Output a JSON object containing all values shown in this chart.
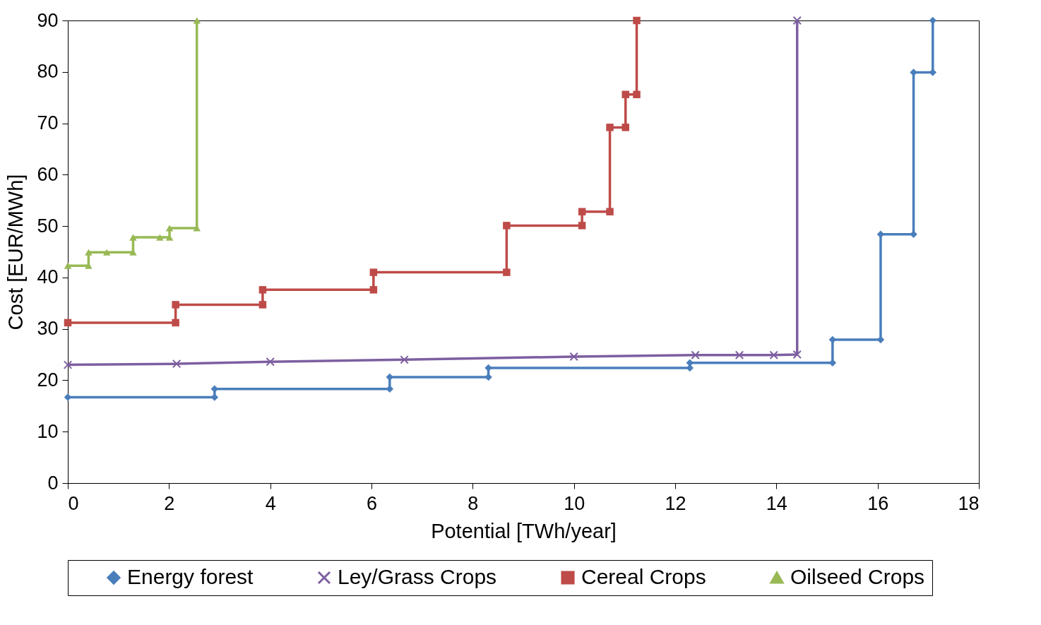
{
  "chart_data": {
    "type": "line",
    "xlabel": "Potential [TWh/year]",
    "ylabel": "Cost [EUR/MWh]",
    "xlim": [
      0,
      18
    ],
    "xticks": [
      0,
      2,
      4,
      6,
      8,
      10,
      12,
      14,
      16,
      18
    ],
    "ylim": [
      0,
      90
    ],
    "yticks": [
      0,
      10,
      20,
      30,
      40,
      50,
      60,
      70,
      80,
      90
    ],
    "grid": false,
    "legend": "bottom",
    "series": [
      {
        "name": "Energy forest",
        "color": "#4a7ebb",
        "marker": "diamond",
        "x": [
          0,
          2.9,
          2.9,
          6.36,
          6.36,
          8.31,
          8.31,
          12.29,
          12.29,
          15.11,
          15.11,
          16.06,
          16.06,
          16.71,
          16.71,
          17.09,
          17.09
        ],
        "values": [
          16.7,
          16.7,
          18.3,
          18.3,
          20.6,
          20.6,
          22.4,
          22.4,
          23.4,
          23.4,
          27.9,
          27.9,
          48.4,
          48.4,
          79.9,
          79.9,
          90
        ]
      },
      {
        "name": "Ley/Grass Crops",
        "color": "#7d5fa0",
        "marker": "cross",
        "x": [
          0,
          2.15,
          4.0,
          6.65,
          10.0,
          12.4,
          13.27,
          13.95,
          14.41,
          14.41
        ],
        "values": [
          23.0,
          23.2,
          23.6,
          24.0,
          24.6,
          24.9,
          24.9,
          24.9,
          25.0,
          90
        ]
      },
      {
        "name": "Cereal Crops",
        "color": "#be4b48",
        "marker": "square",
        "x": [
          0,
          2.13,
          2.13,
          3.85,
          3.85,
          6.04,
          6.04,
          8.67,
          8.67,
          10.16,
          10.16,
          10.71,
          10.71,
          11.02,
          11.02,
          11.24,
          11.24
        ],
        "values": [
          31.2,
          31.2,
          34.7,
          34.7,
          37.6,
          37.6,
          41.0,
          41.0,
          50.1,
          50.1,
          52.8,
          52.8,
          69.2,
          69.2,
          75.6,
          75.6,
          90
        ]
      },
      {
        "name": "Oilseed Crops",
        "color": "#98b954",
        "marker": "triangle",
        "x": [
          0,
          0.41,
          0.41,
          0.77,
          1.29,
          1.29,
          1.82,
          2.01,
          2.01,
          2.55,
          2.55
        ],
        "values": [
          42.3,
          42.3,
          44.9,
          44.9,
          44.9,
          47.8,
          47.8,
          47.8,
          49.6,
          49.6,
          90
        ]
      }
    ]
  }
}
